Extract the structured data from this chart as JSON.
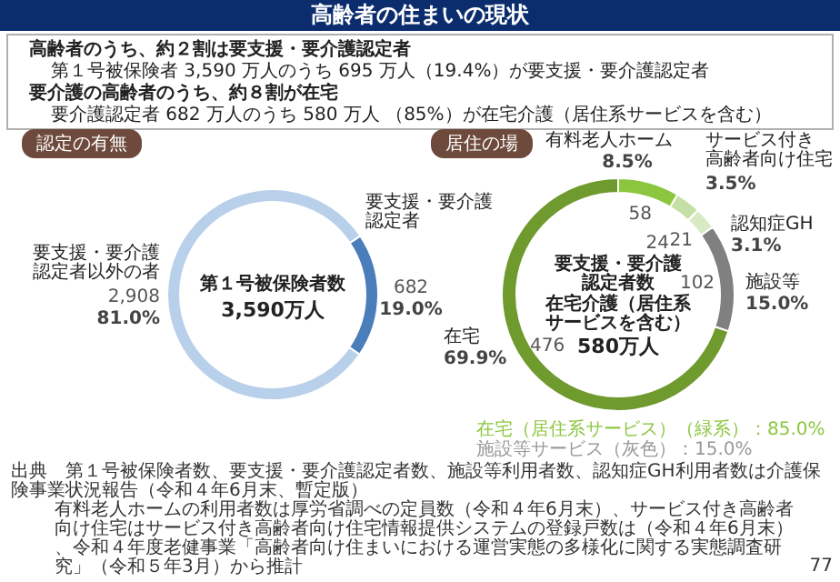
{
  "chart_data": [
    {
      "type": "donut",
      "title": "高齢者の住まいの現状",
      "categories": [
        "要支援・要介護認定者",
        "要支援・要介護認定者以外の者"
      ],
      "values": [
        682,
        2908
      ],
      "value_labels": [
        "682",
        "2,908"
      ],
      "colors": [
        "#4a7ebb",
        "#b9d0ea"
      ],
      "data_labels": true,
      "annotations": [
        "高齢者のうち、約２割は要支援・要介護認定者",
        "第１号被保険者 3,590 万人のうち 695 万人（19.4%）が要支援・要介護認定者",
        "要介護の高齢者のうち、約８割が在宅",
        "要介護認定者 682 万人のうち 580 万人 （85%）が在宅介護（居住系サービスを含む）",
        "認定の有無",
        "第１号被保険者数",
        "3,590万人",
        "19.0%",
        "81.0%",
        "出典　第１号被保険者数、要支援・要介護認定者数、施設等利用者数、認知症GH利用者数は介護保険事業状況報告（令和４年6月末、暫定版）",
        "有料老人ホームの利用者数は厚労省調べの定員数（令和４年6月末）、サービス付き高齢者向け住宅はサービス付き高齢者向け住宅情報提供システムの登録戸数は（令和４年6月末）、令和４年度老健事業「高齢者向け住まいにおける運営実態の多様化に関する実態調査研究」（令和５年3月）から推計",
        "77"
      ]
    },
    {
      "type": "donut",
      "categories": [
        "有料老人ホーム",
        "サービス付き高齢者向け住宅",
        "認知症GH",
        "施設等",
        "在宅"
      ],
      "values": [
        58,
        24,
        21,
        102,
        476
      ],
      "colors": [
        "#8cc63f",
        "#c5e0a5",
        "#d8eac2",
        "#808080",
        "#6f9a2e"
      ],
      "data_labels": true,
      "annotations": [
        "居住の場",
        "要支援・要介護認定者数",
        "在宅介護（居住系サービスを含む）",
        "580万人",
        "8.5%",
        "3.5%",
        "3.1%",
        "15.0%",
        "69.9%",
        "在宅（居住系サービス）（緑系）：85.0%",
        "施設等サービス（灰色）：15.0%"
      ]
    }
  ]
}
